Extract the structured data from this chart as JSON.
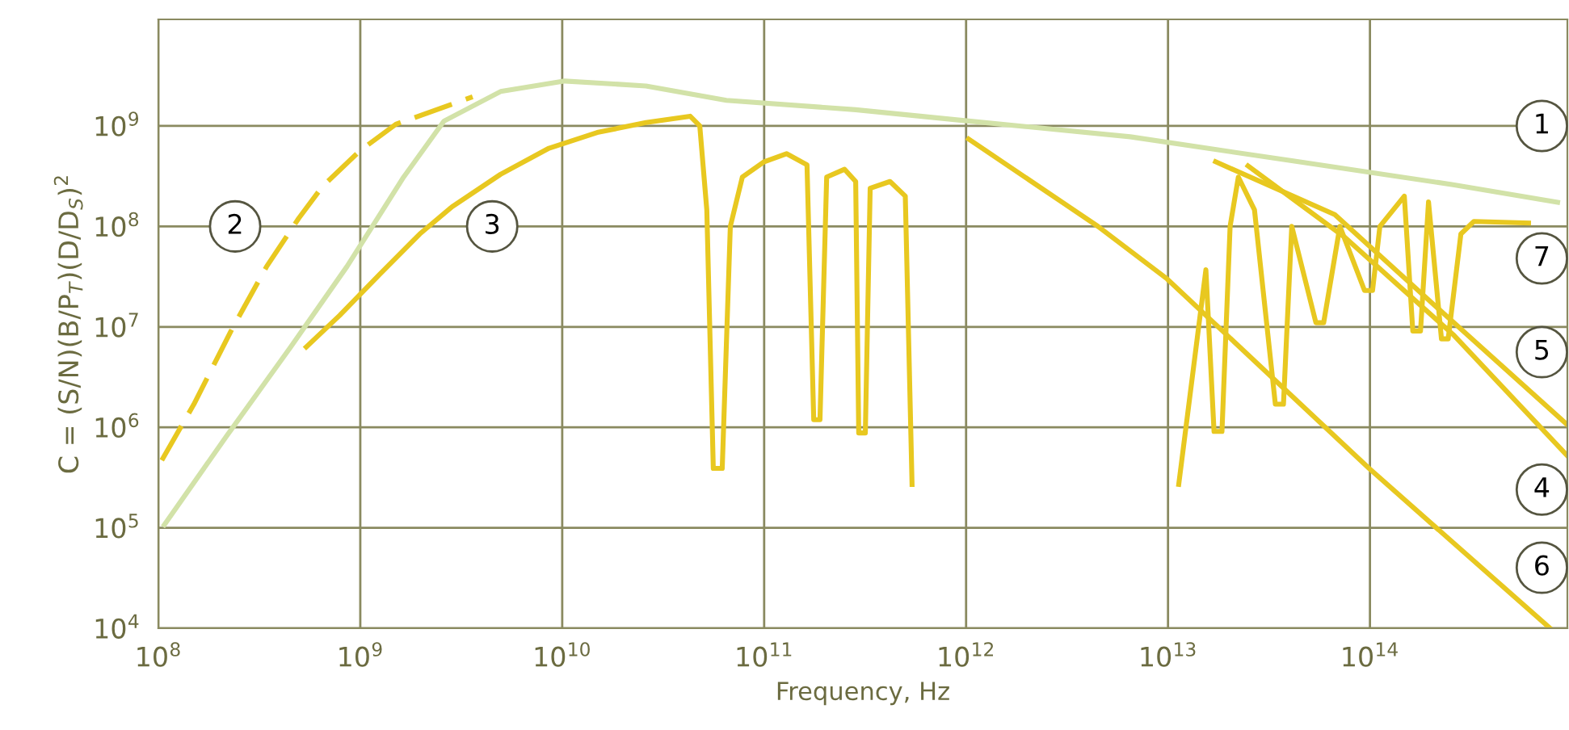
{
  "chart_data": {
    "type": "line",
    "xlabel": "Frequency, Hz",
    "ylabel": "C = (S/N)(B/P$_{T}$)(D/D$_{S}$)$^{2}$",
    "log": "xy",
    "grid": true,
    "xlim": [
      100000000.0,
      950000000000000.0
    ],
    "ylim": [
      10000.0,
      11500000000.0
    ],
    "xticks": [
      {
        "value": 100000000.0,
        "label": "10$^{8}$"
      },
      {
        "value": 1000000000.0,
        "label": "10$^{9}$"
      },
      {
        "value": 10000000000.0,
        "label": "10$^{10}$"
      },
      {
        "value": 100000000000.0,
        "label": "10$^{11}$"
      },
      {
        "value": 1000000000000.0,
        "label": "10$^{12}$"
      },
      {
        "value": 10000000000000.0,
        "label": "10$^{13}$"
      },
      {
        "value": 100000000000000.0,
        "label": "10$^{14}$"
      }
    ],
    "yticks": [
      {
        "value": 10000.0,
        "label": "10$^{4}$"
      },
      {
        "value": 100000.0,
        "label": "10$^{5}$"
      },
      {
        "value": 1000000.0,
        "label": "10$^{6}$"
      },
      {
        "value": 10000000.0,
        "label": "10$^{7}$"
      },
      {
        "value": 100000000.0,
        "label": "10$^{8}$"
      },
      {
        "value": 1000000000.0,
        "label": "10$^{9}$"
      }
    ],
    "series": [
      {
        "color": "#d2e2a8",
        "line_style": "solid",
        "x": [
          107000000.0,
          217000000.0,
          452000000.0,
          860000000.0,
          1640000000.0,
          2600000000.0,
          4950000000.0,
          10300000000.0,
          26000000000.0,
          65000000000.0,
          284000000000.0,
          1030000000000.0,
          6500000000000.0,
          41000000000000.0,
          258000000000000.0,
          850000000000000.0
        ],
        "values": [
          107000.0,
          810000.0,
          6300000.0,
          40000000.0,
          310000000.0,
          1120000000.0,
          2200000000.0,
          2800000000.0,
          2500000000.0,
          1800000000.0,
          1450000000.0,
          1120000000.0,
          780000000.0,
          450000000.0,
          260000000.0,
          174000000.0
        ]
      },
      {
        "color": "#e8c820",
        "line_style": "dashed",
        "x": [
          104000000.0,
          150000000.0,
          229000000.0,
          344000000.0,
          495000000.0,
          650000000.0,
          1000000000.0,
          1500000000.0,
          3600000000.0
        ],
        "values": [
          470000.0,
          1700000.0,
          9100000.0,
          40000000.0,
          120000000.0,
          250000000.0,
          570000000.0,
          1040000000.0,
          1950000000.0
        ]
      },
      {
        "color": "#e8c820",
        "line_style": "solid",
        "x": [
          540000000.0,
          790000000.0,
          1240000000.0,
          1970000000.0,
          2850000000.0,
          4950000000.0,
          8600000000.0,
          14900000000.0,
          26000000000.0,
          43000000000.0,
          48000000000.0,
          52000000000.0,
          56000000000.0,
          62000000000.0,
          68000000000.0,
          78000000000.0,
          100000000000.0,
          129000000000.0,
          163000000000.0,
          176000000000.0,
          189000000000.0,
          204000000000.0,
          250000000000.0,
          284000000000.0,
          294000000000.0,
          317000000000.0,
          335000000000.0,
          420000000000.0,
          500000000000.0,
          540000000000.0
        ],
        "values": [
          6300000.0,
          13000000.0,
          33000000.0,
          84000000.0,
          157000000.0,
          330000000.0,
          600000000.0,
          860000000.0,
          1080000000.0,
          1250000000.0,
          1000000000.0,
          146000000.0,
          390000.0,
          390000.0,
          100000000.0,
          310000000.0,
          440000000.0,
          530000000.0,
          410000000.0,
          1190000.0,
          1190000.0,
          310000000.0,
          370000000.0,
          280000000.0,
          880000.0,
          880000.0,
          240000000.0,
          280000000.0,
          200000000.0,
          270000.0
        ]
      },
      {
        "color": "#e8c820",
        "line_style": "solid",
        "x": [
          24900000000000.0,
          75000000000000.0,
          258000000000000.0,
          950000000000000.0
        ],
        "values": [
          400000000.0,
          78000000.0,
          8400000.0,
          520000.0
        ]
      },
      {
        "color": "#e8c820",
        "line_style": "solid",
        "x": [
          17200000000000.0,
          67000000000000.0,
          226000000000000.0,
          950000000000000.0
        ],
        "values": [
          440000000.0,
          131000000.0,
          14200000.0,
          1060000.0
        ]
      },
      {
        "color": "#e8c820",
        "line_style": "solid",
        "x": [
          1030000000000.0,
          4500000000000.0,
          9900000000000.0,
          99000000000000.0,
          780000000000000.0
        ],
        "values": [
          740000000.0,
          100000000.0,
          30000000.0,
          390000.0,
          10000.0
        ]
      },
      {
        "color": "#e8c820",
        "line_style": "solid",
        "x": [
          11300000000000.0,
          15400000000000.0,
          16900000000000.0,
          18500000000000.0,
          20300000000000.0,
          22300000000000.0,
          26800000000000.0,
          34000000000000.0,
          37300000000000.0,
          41000000000000.0,
          54000000000000.0,
          59000000000000.0,
          71000000000000.0,
          94000000000000.0,
          103000000000000.0,
          112000000000000.0,
          148000000000000.0,
          163000000000000.0,
          178000000000000.0,
          195000000000000.0,
          226000000000000.0,
          244000000000000.0,
          282000000000000.0,
          327000000000000.0,
          610000000000000.0
        ],
        "values": [
          270000.0,
          37000000.0,
          910000.0,
          910000.0,
          100000000.0,
          310000000.0,
          146000000.0,
          1700000.0,
          1700000.0,
          100000000.0,
          11000000.0,
          11000000.0,
          100000000.0,
          23000000.0,
          23000000.0,
          100000000.0,
          200000000.0,
          9100000.0,
          9100000.0,
          175000000.0,
          7600000.0,
          7600000.0,
          84000000.0,
          112000000.0,
          108000000.0
        ]
      }
    ],
    "annotations": [
      {
        "text": "1",
        "x": 710000000000000.0,
        "y": 1000000000.0
      },
      {
        "text": "2",
        "x": 240000000.0,
        "y": 100000000.0
      },
      {
        "text": "3",
        "x": 4500000000.0,
        "y": 100000000.0
      },
      {
        "text": "7",
        "x": 710000000000000.0,
        "y": 48000000.0
      },
      {
        "text": "5",
        "x": 710000000000000.0,
        "y": 5600000.0
      },
      {
        "text": "4",
        "x": 710000000000000.0,
        "y": 240000.0
      },
      {
        "text": "6",
        "x": 710000000000000.0,
        "y": 40000.0
      }
    ]
  }
}
